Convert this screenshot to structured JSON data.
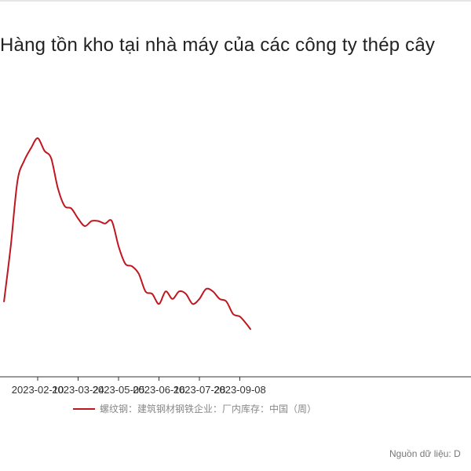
{
  "chart_data": {
    "type": "line",
    "title": "Hàng tồn kho tại nhà máy của các công ty thép cây",
    "x_tick_labels": [
      "2023-02-10",
      "2023-03-24",
      "2023-05-05",
      "2023-06-16",
      "2023-07-28",
      "2023-09-08"
    ],
    "x_tick_days": [
      0,
      42,
      84,
      126,
      168,
      210
    ],
    "series": [
      {
        "name": "螺纹钢：建筑钢材钢铁企业：厂内库存：中国（周）",
        "color": "#c0161f",
        "values": [
          {
            "x": "2023-01-06",
            "y": 30
          },
          {
            "x": "2023-01-13",
            "y": 52
          },
          {
            "x": "2023-01-20",
            "y": 78
          },
          {
            "x": "2023-01-27",
            "y": 86
          },
          {
            "x": "2023-02-03",
            "y": 91
          },
          {
            "x": "2023-02-10",
            "y": 95
          },
          {
            "x": "2023-02-17",
            "y": 90
          },
          {
            "x": "2023-02-24",
            "y": 87
          },
          {
            "x": "2023-03-03",
            "y": 75
          },
          {
            "x": "2023-03-10",
            "y": 68
          },
          {
            "x": "2023-03-17",
            "y": 67
          },
          {
            "x": "2023-03-24",
            "y": 63
          },
          {
            "x": "2023-03-31",
            "y": 60
          },
          {
            "x": "2023-04-07",
            "y": 62
          },
          {
            "x": "2023-04-14",
            "y": 62
          },
          {
            "x": "2023-04-21",
            "y": 61
          },
          {
            "x": "2023-04-28",
            "y": 62
          },
          {
            "x": "2023-05-05",
            "y": 52
          },
          {
            "x": "2023-05-12",
            "y": 45
          },
          {
            "x": "2023-05-19",
            "y": 44
          },
          {
            "x": "2023-05-26",
            "y": 41
          },
          {
            "x": "2023-06-02",
            "y": 34
          },
          {
            "x": "2023-06-09",
            "y": 33
          },
          {
            "x": "2023-06-16",
            "y": 29
          },
          {
            "x": "2023-06-23",
            "y": 34
          },
          {
            "x": "2023-06-30",
            "y": 31
          },
          {
            "x": "2023-07-07",
            "y": 34
          },
          {
            "x": "2023-07-14",
            "y": 33
          },
          {
            "x": "2023-07-21",
            "y": 29
          },
          {
            "x": "2023-07-28",
            "y": 31
          },
          {
            "x": "2023-08-04",
            "y": 35
          },
          {
            "x": "2023-08-11",
            "y": 34
          },
          {
            "x": "2023-08-18",
            "y": 31
          },
          {
            "x": "2023-08-25",
            "y": 30
          },
          {
            "x": "2023-09-01",
            "y": 25
          },
          {
            "x": "2023-09-08",
            "y": 24
          },
          {
            "x": "2023-09-15",
            "y": 21
          },
          {
            "x": "2023-09-19",
            "y": 19
          }
        ]
      }
    ],
    "grid": false,
    "legend_position": "bottom-center"
  },
  "source_note": "Nguồn dữ liệu: D"
}
